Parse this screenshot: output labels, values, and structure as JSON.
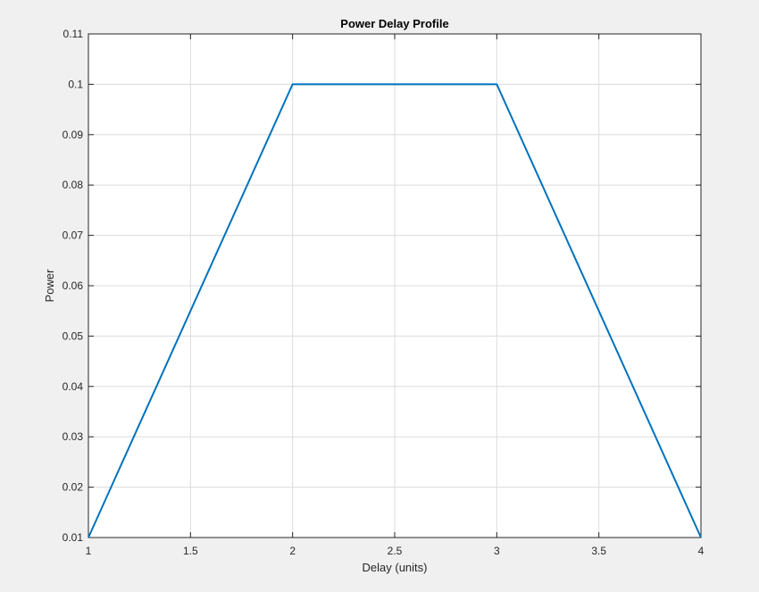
{
  "chart_data": {
    "type": "line",
    "title": "Power Delay Profile",
    "xlabel": "Delay (units)",
    "ylabel": "Power",
    "xlim": [
      1,
      4
    ],
    "ylim": [
      0.01,
      0.11
    ],
    "xticks": [
      1,
      1.5,
      2,
      2.5,
      3,
      3.5,
      4
    ],
    "xtick_labels": [
      "1",
      "1.5",
      "2",
      "2.5",
      "3",
      "3.5",
      "4"
    ],
    "yticks": [
      0.01,
      0.02,
      0.03,
      0.04,
      0.05,
      0.06,
      0.07,
      0.08,
      0.09,
      0.1,
      0.11
    ],
    "ytick_labels": [
      "0.01",
      "0.02",
      "0.03",
      "0.04",
      "0.05",
      "0.06",
      "0.07",
      "0.08",
      "0.09",
      "0.1",
      "0.11"
    ],
    "grid": true,
    "series": [
      {
        "color": "#0072bd",
        "x": [
          1,
          2,
          3,
          4
        ],
        "y": [
          0.01,
          0.1,
          0.1,
          0.01
        ]
      }
    ]
  }
}
